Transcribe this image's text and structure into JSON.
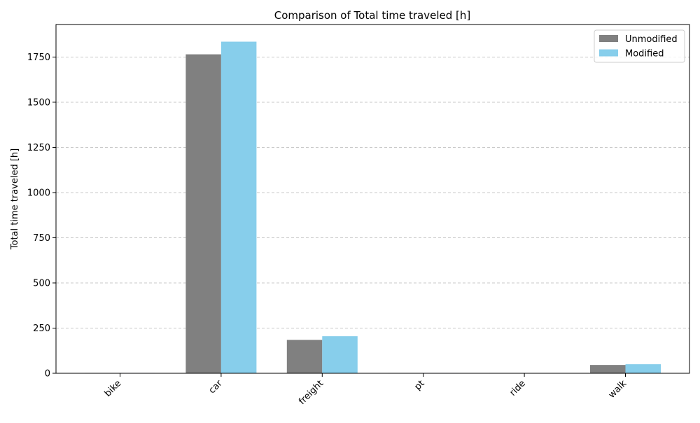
{
  "chart_data": {
    "type": "bar",
    "title": "Comparison of Total time traveled [h]",
    "xlabel": "",
    "ylabel": "Total time traveled [h]",
    "categories": [
      "bike",
      "car",
      "freight",
      "pt",
      "ride",
      "walk"
    ],
    "series": [
      {
        "name": "Unmodified",
        "color": "#808080",
        "values": [
          2,
          1765,
          185,
          2,
          2,
          46
        ]
      },
      {
        "name": "Modified",
        "color": "#87ceeb",
        "values": [
          2,
          1835,
          205,
          2,
          0,
          50
        ]
      }
    ],
    "ylim": [
      0,
      1835
    ],
    "yticks": [
      0,
      250,
      500,
      750,
      1000,
      1250,
      1500,
      1750
    ],
    "grid": true,
    "legend_position": "top-right"
  }
}
